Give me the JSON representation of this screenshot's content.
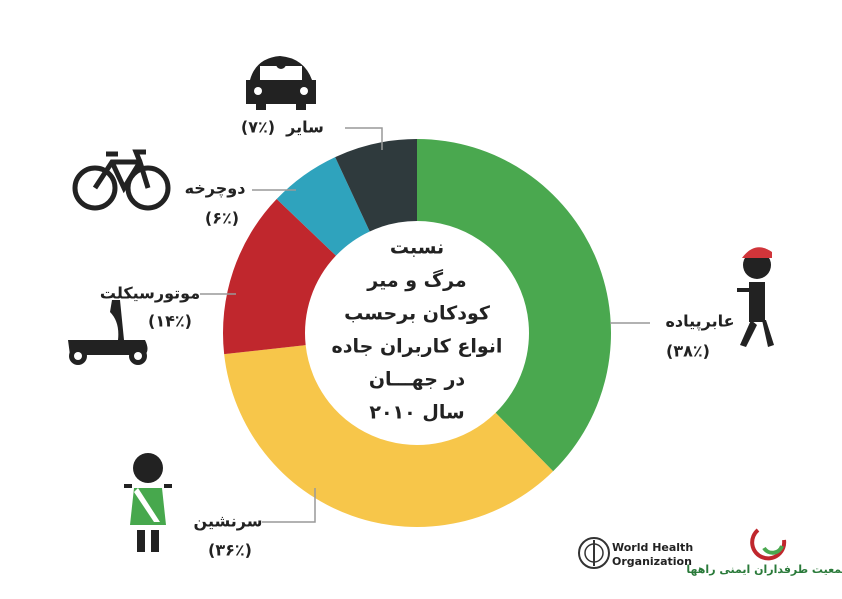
{
  "chart_data": {
    "type": "donut",
    "title": [
      "نسبت",
      "مرگ و میر",
      "کودکان برحسب",
      "انواع کاربران جاده",
      "در جهـــان",
      "سال ۲۰۱۰"
    ],
    "categories": [
      "عابرپیاده",
      "سرنشین",
      "موتورسیکلت",
      "دوچرخه",
      "سایر"
    ],
    "values": [
      38,
      36,
      14,
      6,
      7
    ],
    "value_labels": [
      "(٣٨٪)",
      "(٣۶٪)",
      "(١۴٪)",
      "(۶٪)",
      "(٧٪)"
    ],
    "colors": [
      "#4aa84f",
      "#f7c64a",
      "#c0272d",
      "#2fa3bd",
      "#2f3a3d"
    ]
  },
  "logos": [
    "World Health",
    "Organization",
    "جمعیت طرفداران ایمنی راهها"
  ]
}
